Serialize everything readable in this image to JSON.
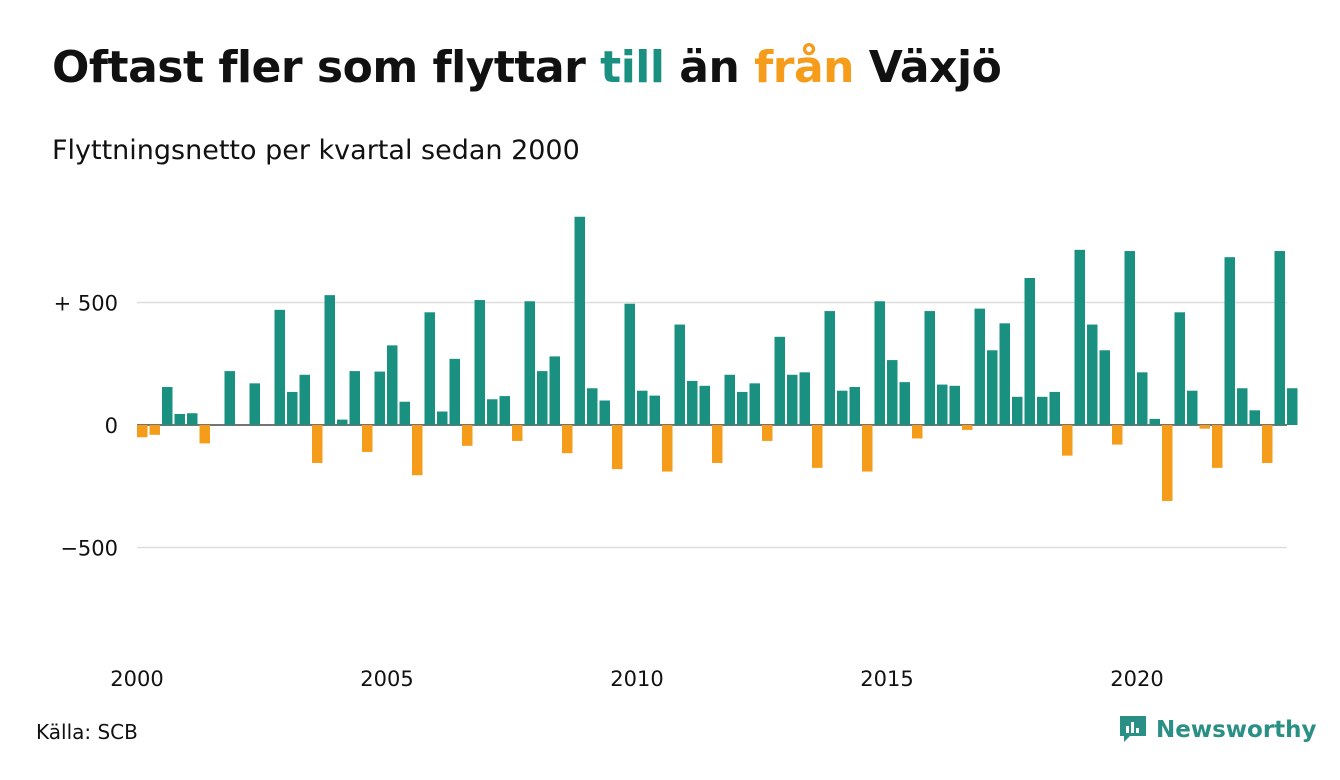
{
  "header": {
    "title_prefix": "Oftast fler som flyttar ",
    "title_till": "till",
    "title_mid": " än ",
    "title_fran": "från",
    "title_suffix": " Växjö",
    "subtitle": "Flyttningsnetto per kvartal sedan 2000"
  },
  "footer": {
    "source": "Källa: SCB",
    "brand": "Newsworthy",
    "brand_icon": "bar-chart-speech-bubble-icon"
  },
  "colors": {
    "positive": "#1a9081",
    "negative": "#f59c1a",
    "grid": "#dddddd",
    "text": "#111111",
    "brand": "#2a8f84"
  },
  "chart_data": {
    "type": "bar",
    "x_start": {
      "year": 2000,
      "quarter": 1
    },
    "values": [
      -50,
      -40,
      155,
      45,
      48,
      -75,
      0,
      220,
      0,
      170,
      0,
      470,
      135,
      205,
      -155,
      530,
      22,
      220,
      -110,
      218,
      325,
      95,
      -205,
      460,
      55,
      270,
      -85,
      510,
      105,
      118,
      -65,
      505,
      220,
      280,
      -115,
      850,
      150,
      100,
      -180,
      495,
      140,
      120,
      -190,
      410,
      180,
      160,
      -155,
      205,
      135,
      170,
      -65,
      360,
      205,
      215,
      -175,
      465,
      140,
      155,
      -190,
      505,
      265,
      175,
      -55,
      465,
      165,
      160,
      -20,
      475,
      305,
      415,
      115,
      600,
      115,
      135,
      -125,
      715,
      410,
      305,
      -80,
      710,
      215,
      25,
      -310,
      460,
      140,
      -15,
      -175,
      685,
      150,
      60,
      -155,
      710,
      150
    ],
    "x_ticks": [
      {
        "value": 2000,
        "label": "2000"
      },
      {
        "value": 2005,
        "label": "2005"
      },
      {
        "value": 2010,
        "label": "2010"
      },
      {
        "value": 2015,
        "label": "2015"
      },
      {
        "value": 2020,
        "label": "2020"
      }
    ],
    "y_ticks": [
      {
        "value": 500,
        "label": "+ 500"
      },
      {
        "value": 0,
        "label": "0"
      },
      {
        "value": -500,
        "label": "−500"
      }
    ],
    "ylim": [
      -900,
      900
    ],
    "grid": true,
    "legend": "none"
  }
}
